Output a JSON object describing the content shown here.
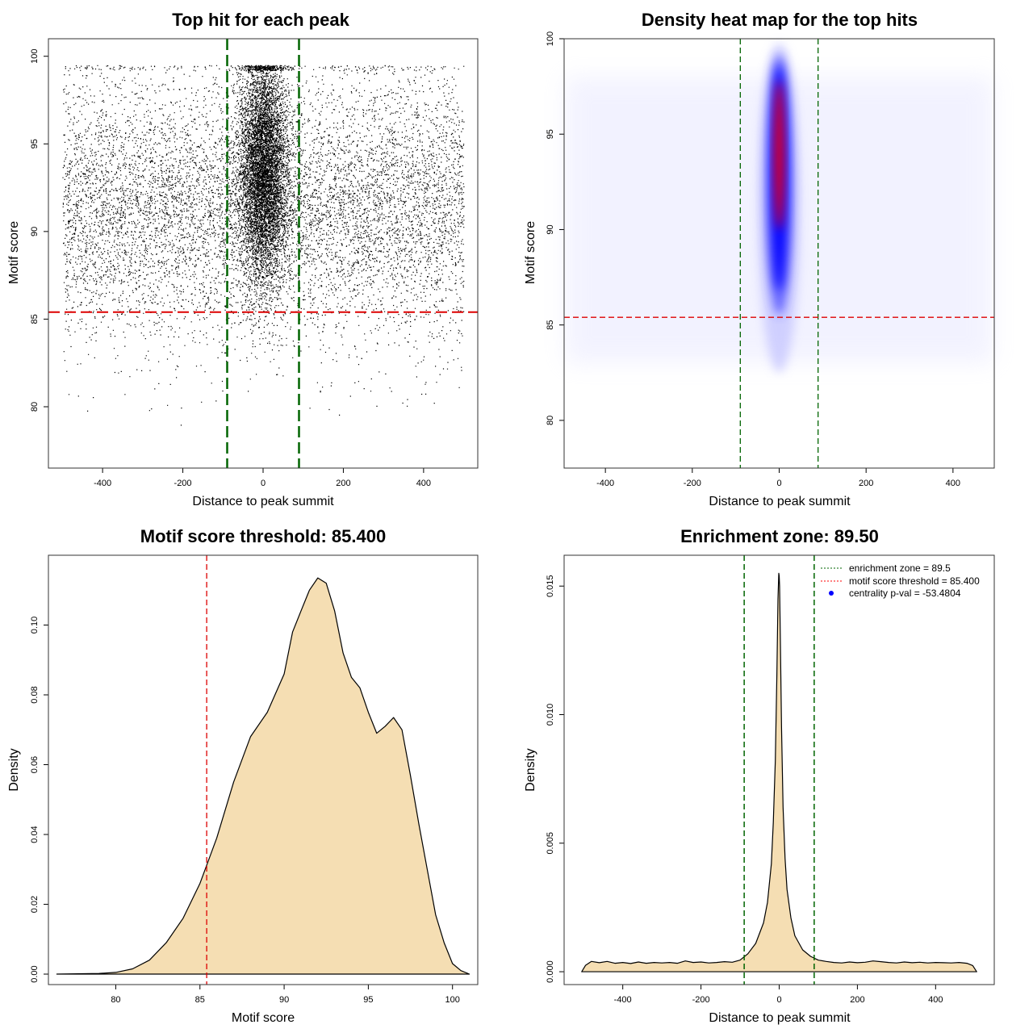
{
  "chart_data": [
    {
      "id": "scatter",
      "type": "scatter",
      "title": "Top hit for each peak",
      "xlabel": "Distance to peak summit",
      "ylabel": "Motif score",
      "xlim": [
        -535,
        535
      ],
      "ylim": [
        76.5,
        101
      ],
      "x_ticks": [
        -400,
        -200,
        0,
        200,
        400
      ],
      "y_ticks": [
        80,
        85,
        90,
        95,
        100
      ],
      "vlines": [
        -89.5,
        89.5
      ],
      "hline": 85.4,
      "vline_color": "#006400",
      "hline_color": "#dd0000",
      "point_color": "#000000",
      "distribution": {
        "background_fraction": 0.55,
        "x_range": [
          -500,
          500
        ],
        "background_score_mean": 91.5,
        "background_score_sd": 3.8,
        "central_x_sd": 30,
        "central_score_mean": 93.5,
        "central_score_sd": 3.2,
        "score_max": 99.5
      }
    },
    {
      "id": "heatmap",
      "type": "heatmap",
      "title": "Density heat map for the top hits",
      "xlabel": "Distance to peak summit",
      "ylabel": "Motif score",
      "xlim": [
        -495,
        495
      ],
      "ylim": [
        77.5,
        100
      ],
      "x_ticks": [
        -400,
        -200,
        0,
        200,
        400
      ],
      "y_ticks": [
        80,
        85,
        90,
        95,
        100
      ],
      "vlines": [
        -89.5,
        89.5
      ],
      "hline": 85.4,
      "colors": [
        "#ffffff",
        "#0000ff",
        "#ff0000"
      ],
      "hotspot": {
        "x_center": 0,
        "y_center": 93.5,
        "x_sd": 12,
        "y_sd": 3.2
      }
    },
    {
      "id": "score_density",
      "type": "area",
      "title": "Motif score threshold: 85.400",
      "xlabel": "Motif score",
      "ylabel": "Density",
      "xlim": [
        76,
        101.5
      ],
      "ylim": [
        -0.003,
        0.12
      ],
      "x_ticks": [
        80,
        85,
        90,
        95,
        100
      ],
      "y_ticks": [
        0.0,
        0.02,
        0.04,
        0.06,
        0.08,
        0.1
      ],
      "y_tick_labels": [
        "0.00",
        "0.02",
        "0.04",
        "0.06",
        "0.08",
        "0.10"
      ],
      "vline": 85.4,
      "fill": "#f5deb3",
      "x": [
        76.5,
        79,
        80,
        81,
        82,
        83,
        84,
        85,
        86,
        87,
        88,
        89,
        90,
        90.5,
        91,
        91.5,
        92,
        92.5,
        93,
        93.5,
        94,
        94.5,
        95,
        95.5,
        96,
        96.5,
        97,
        97.5,
        98,
        98.5,
        99,
        99.5,
        100,
        100.5,
        101
      ],
      "y": [
        0.0,
        0.0002,
        0.0005,
        0.0015,
        0.004,
        0.009,
        0.016,
        0.026,
        0.039,
        0.055,
        0.068,
        0.075,
        0.086,
        0.098,
        0.104,
        0.11,
        0.1135,
        0.112,
        0.104,
        0.092,
        0.085,
        0.082,
        0.075,
        0.069,
        0.071,
        0.0735,
        0.07,
        0.057,
        0.043,
        0.03,
        0.017,
        0.009,
        0.003,
        0.001,
        0.0
      ]
    },
    {
      "id": "distance_density",
      "type": "area",
      "title": "Enrichment zone: 89.50",
      "xlabel": "Distance to peak summit",
      "ylabel": "Density",
      "xlim": [
        -550,
        550
      ],
      "ylim": [
        -0.0005,
        0.0162
      ],
      "x_ticks": [
        -400,
        -200,
        0,
        200,
        400
      ],
      "y_ticks": [
        0.0,
        0.005,
        0.01,
        0.015
      ],
      "y_tick_labels": [
        "0.000",
        "0.005",
        "0.010",
        "0.015"
      ],
      "vlines": [
        -89.5,
        89.5
      ],
      "fill": "#f5deb3",
      "x": [
        -505,
        -495,
        -480,
        -460,
        -440,
        -420,
        -400,
        -380,
        -360,
        -340,
        -320,
        -300,
        -280,
        -260,
        -240,
        -220,
        -200,
        -180,
        -160,
        -140,
        -120,
        -100,
        -80,
        -60,
        -40,
        -30,
        -20,
        -15,
        -10,
        -6,
        -3,
        -1,
        0,
        1,
        3,
        6,
        10,
        15,
        20,
        30,
        40,
        60,
        80,
        100,
        120,
        140,
        160,
        180,
        200,
        220,
        240,
        260,
        280,
        300,
        320,
        340,
        360,
        380,
        400,
        420,
        440,
        460,
        480,
        495,
        505
      ],
      "y": [
        0.0,
        0.00025,
        0.0004,
        0.00035,
        0.0004,
        0.00033,
        0.00036,
        0.00032,
        0.00038,
        0.00033,
        0.00036,
        0.00034,
        0.00036,
        0.00033,
        0.00042,
        0.00036,
        0.00038,
        0.00034,
        0.00036,
        0.00039,
        0.00037,
        0.00045,
        0.0007,
        0.0011,
        0.0019,
        0.0027,
        0.0042,
        0.0058,
        0.0082,
        0.0115,
        0.0145,
        0.0155,
        0.0154,
        0.015,
        0.0128,
        0.0095,
        0.0064,
        0.0044,
        0.0032,
        0.0021,
        0.0014,
        0.00085,
        0.0006,
        0.00045,
        0.0004,
        0.00036,
        0.00034,
        0.00038,
        0.00035,
        0.00037,
        0.00042,
        0.00039,
        0.00036,
        0.00034,
        0.00038,
        0.00035,
        0.00037,
        0.00034,
        0.00036,
        0.00035,
        0.00034,
        0.00036,
        0.00033,
        0.00024,
        0.0
      ],
      "legend": [
        {
          "label": "enrichment zone = 89.5",
          "color": "#006400",
          "style": "dotted-line"
        },
        {
          "label": "motif score threshold = 85.400",
          "color": "#ff0000",
          "style": "dotted-line"
        },
        {
          "label": "centrality p-val = -53.4804",
          "color": "#0000ff",
          "style": "point"
        }
      ],
      "legend_position": "top-right"
    }
  ]
}
